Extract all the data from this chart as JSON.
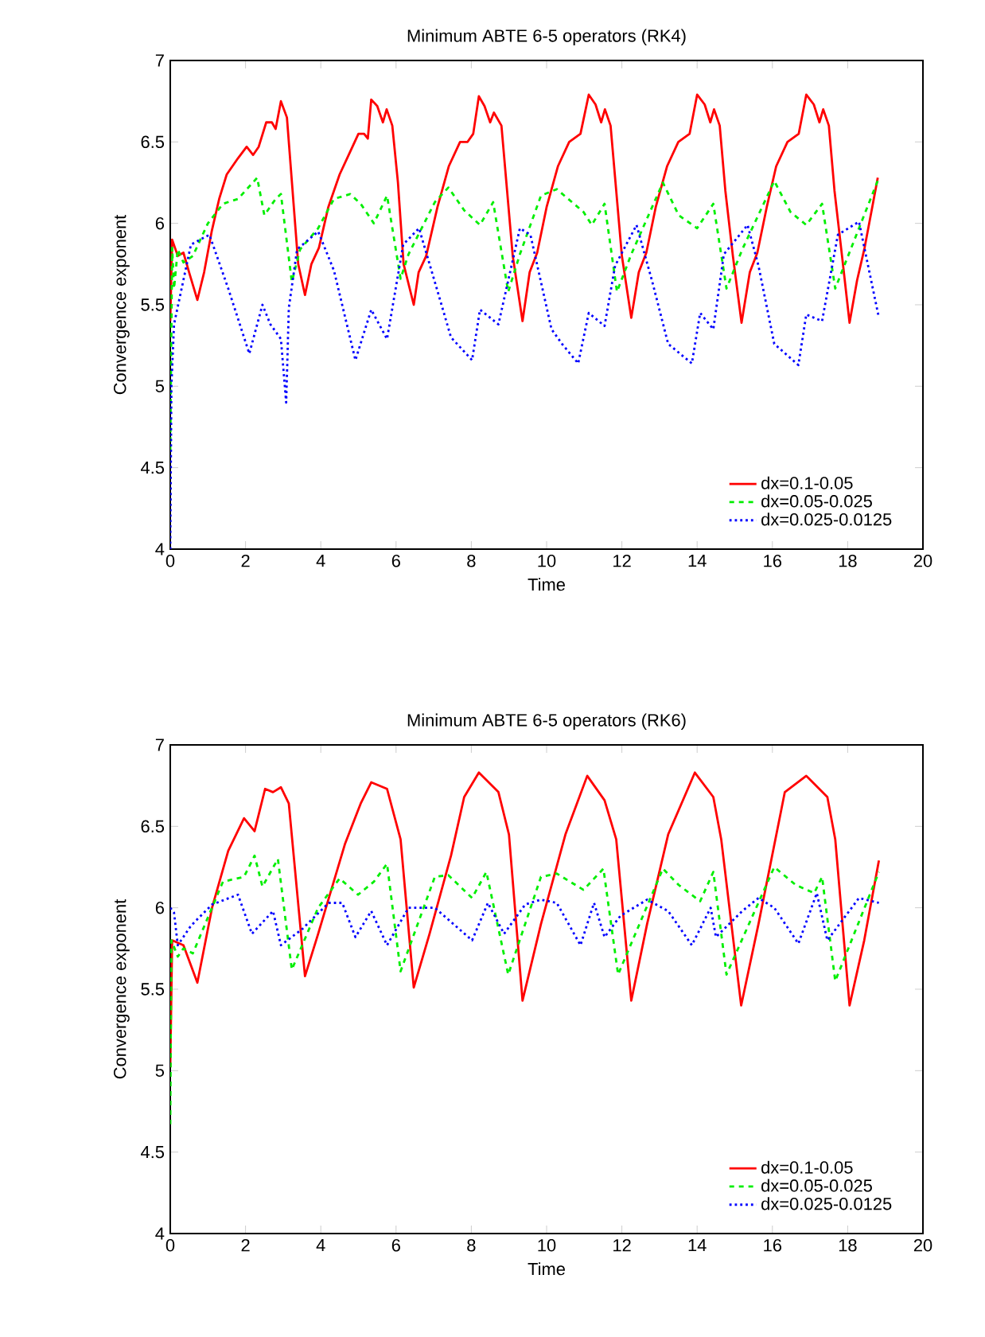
{
  "chart_data": [
    {
      "type": "line",
      "title": "Minimum ABTE 6-5 operators (RK4)",
      "xlabel": "Time",
      "ylabel": "Convergence exponent",
      "xlim": [
        0,
        20
      ],
      "xticks": [
        0,
        2,
        4,
        6,
        8,
        10,
        12,
        14,
        16,
        18,
        20
      ],
      "ylim": [
        4,
        7
      ],
      "yticks": [
        4,
        4.5,
        5,
        5.5,
        6,
        6.5,
        7
      ],
      "legend": "bottom right",
      "grid": false,
      "series": [
        {
          "name": "dx=0.1-0.05",
          "color": "#ff0000",
          "line_style": "solid",
          "x": [
            0,
            0.05,
            0.2,
            0.35,
            0.5,
            0.72,
            0.9,
            1.1,
            1.3,
            1.5,
            1.8,
            2.03,
            2.2,
            2.35,
            2.55,
            2.7,
            2.8,
            2.94,
            3.1,
            3.25,
            3.4,
            3.58,
            3.75,
            3.95,
            4.2,
            4.5,
            4.8,
            5.0,
            5.15,
            5.25,
            5.34,
            5.5,
            5.65,
            5.75,
            5.9,
            6.05,
            6.2,
            6.47,
            6.6,
            6.8,
            7.1,
            7.4,
            7.7,
            7.9,
            8.05,
            8.2,
            8.35,
            8.5,
            8.6,
            8.8,
            8.95,
            9.1,
            9.36,
            9.55,
            9.75,
            10.0,
            10.3,
            10.6,
            10.9,
            11.12,
            11.3,
            11.45,
            11.55,
            11.7,
            11.85,
            12.0,
            12.25,
            12.45,
            12.65,
            12.9,
            13.2,
            13.5,
            13.8,
            14.0,
            14.2,
            14.35,
            14.45,
            14.6,
            14.75,
            14.95,
            15.18,
            15.4,
            15.6,
            15.85,
            16.1,
            16.4,
            16.7,
            16.9,
            17.1,
            17.25,
            17.35,
            17.5,
            17.65,
            17.85,
            18.05,
            18.25,
            18.45,
            18.8
          ],
          "values": [
            5.4,
            5.9,
            5.8,
            5.82,
            5.7,
            5.53,
            5.7,
            5.95,
            6.15,
            6.3,
            6.4,
            6.47,
            6.42,
            6.47,
            6.62,
            6.62,
            6.58,
            6.75,
            6.65,
            6.2,
            5.75,
            5.56,
            5.75,
            5.85,
            6.1,
            6.3,
            6.45,
            6.55,
            6.55,
            6.52,
            6.76,
            6.72,
            6.62,
            6.7,
            6.6,
            6.25,
            5.75,
            5.5,
            5.7,
            5.8,
            6.1,
            6.35,
            6.5,
            6.5,
            6.55,
            6.78,
            6.72,
            6.62,
            6.68,
            6.6,
            6.2,
            5.8,
            5.4,
            5.7,
            5.82,
            6.1,
            6.35,
            6.5,
            6.55,
            6.79,
            6.73,
            6.62,
            6.7,
            6.6,
            6.2,
            5.8,
            5.42,
            5.7,
            5.82,
            6.1,
            6.35,
            6.5,
            6.55,
            6.79,
            6.73,
            6.62,
            6.7,
            6.6,
            6.2,
            5.8,
            5.39,
            5.7,
            5.82,
            6.1,
            6.35,
            6.5,
            6.55,
            6.79,
            6.73,
            6.62,
            6.7,
            6.6,
            6.2,
            5.8,
            5.39,
            5.65,
            5.85,
            6.28
          ]
        },
        {
          "name": "dx=0.05-0.025",
          "color": "#00ee00",
          "line_style": "dashed",
          "x": [
            0,
            0.03,
            0.05,
            0.1,
            0.2,
            0.35,
            0.6,
            1.0,
            1.4,
            1.8,
            2.31,
            2.5,
            2.8,
            2.94,
            3.23,
            3.45,
            3.93,
            4.35,
            4.78,
            5.06,
            5.41,
            5.76,
            6.12,
            6.33,
            7.03,
            7.39,
            7.81,
            8.23,
            8.58,
            8.98,
            9.29,
            9.85,
            10.27,
            10.98,
            11.2,
            11.54,
            11.87,
            12.25,
            13.09,
            13.51,
            14.0,
            14.43,
            14.78,
            15.2,
            16.05,
            16.48,
            16.9,
            17.32,
            17.67,
            18.83
          ],
          "values": [
            4.6,
            5.35,
            5.85,
            5.6,
            5.84,
            5.76,
            5.8,
            6.0,
            6.12,
            6.15,
            6.28,
            6.05,
            6.15,
            6.18,
            5.64,
            5.84,
            5.97,
            6.15,
            6.18,
            6.12,
            6.0,
            6.17,
            5.66,
            5.81,
            6.13,
            6.22,
            6.08,
            5.99,
            6.13,
            5.58,
            5.81,
            6.17,
            6.21,
            6.07,
            5.99,
            6.12,
            5.58,
            5.81,
            6.25,
            6.05,
            5.97,
            6.12,
            5.6,
            5.84,
            6.26,
            6.07,
            5.99,
            6.12,
            5.6,
            6.28
          ]
        },
        {
          "name": "dx=0.025-0.0125",
          "color": "#0000ff",
          "line_style": "dotted",
          "x": [
            0,
            0.03,
            0.1,
            0.55,
            1.04,
            1.54,
            2.1,
            2.45,
            2.66,
            2.94,
            3.08,
            3.15,
            3.37,
            3.93,
            4.35,
            4.92,
            5.34,
            5.76,
            6.19,
            6.61,
            7.03,
            7.46,
            8.02,
            8.23,
            8.72,
            9.29,
            9.57,
            10.13,
            10.41,
            10.84,
            11.12,
            11.54,
            11.82,
            12.39,
            12.81,
            13.23,
            13.86,
            14.08,
            14.43,
            14.71,
            15.34,
            15.63,
            16.05,
            16.69,
            16.9,
            17.32,
            17.74,
            18.3,
            18.83
          ],
          "values": [
            4.0,
            5.0,
            5.38,
            5.87,
            5.93,
            5.6,
            5.2,
            5.5,
            5.38,
            5.29,
            4.9,
            5.48,
            5.84,
            5.95,
            5.71,
            5.16,
            5.47,
            5.29,
            5.87,
            5.97,
            5.64,
            5.3,
            5.16,
            5.47,
            5.38,
            5.97,
            5.93,
            5.35,
            5.26,
            5.14,
            5.45,
            5.37,
            5.74,
            5.99,
            5.64,
            5.26,
            5.14,
            5.45,
            5.35,
            5.81,
            5.99,
            5.74,
            5.26,
            5.13,
            5.44,
            5.4,
            5.93,
            6.01,
            5.42
          ]
        }
      ]
    },
    {
      "type": "line",
      "title": "Minimum ABTE 6-5 operators (RK6)",
      "xlabel": "Time",
      "ylabel": "Convergence exponent",
      "xlim": [
        0,
        20
      ],
      "xticks": [
        0,
        2,
        4,
        6,
        8,
        10,
        12,
        14,
        16,
        18,
        20
      ],
      "ylim": [
        4,
        7
      ],
      "yticks": [
        4,
        4.5,
        5,
        5.5,
        6,
        6.5,
        7
      ],
      "legend": "bottom right",
      "grid": false,
      "series": [
        {
          "name": "dx=0.1-0.05",
          "color": "#ff0000",
          "line_style": "solid",
          "x": [
            0,
            0.05,
            0.35,
            0.72,
            1.11,
            1.54,
            1.96,
            2.24,
            2.52,
            2.73,
            2.94,
            3.15,
            3.58,
            3.93,
            4.64,
            5.06,
            5.34,
            5.76,
            6.12,
            6.47,
            6.89,
            7.46,
            7.81,
            8.2,
            8.72,
            9.0,
            9.36,
            9.85,
            10.5,
            11.08,
            11.54,
            11.85,
            12.25,
            12.67,
            13.23,
            13.94,
            14.43,
            14.64,
            15.17,
            15.63,
            16.33,
            16.9,
            17.46,
            17.67,
            18.05,
            18.44,
            18.83
          ],
          "values": [
            5.02,
            5.8,
            5.77,
            5.54,
            6.0,
            6.35,
            6.55,
            6.47,
            6.73,
            6.71,
            6.74,
            6.64,
            5.58,
            5.84,
            6.39,
            6.64,
            6.77,
            6.73,
            6.42,
            5.51,
            5.84,
            6.32,
            6.68,
            6.83,
            6.71,
            6.45,
            5.43,
            5.9,
            6.45,
            6.81,
            6.66,
            6.42,
            5.43,
            5.9,
            6.45,
            6.83,
            6.68,
            6.42,
            5.4,
            5.9,
            6.71,
            6.81,
            6.68,
            6.42,
            5.4,
            5.8,
            6.29
          ]
        },
        {
          "name": "dx=0.05-0.025",
          "color": "#00ee00",
          "line_style": "dashed",
          "x": [
            0,
            0.03,
            0.2,
            0.35,
            0.6,
            1.4,
            1.96,
            2.24,
            2.45,
            2.86,
            3.23,
            3.93,
            4.5,
            4.99,
            5.41,
            5.76,
            6.12,
            7.03,
            7.39,
            8.02,
            8.4,
            8.98,
            9.85,
            10.27,
            10.98,
            11.51,
            11.9,
            13.09,
            13.51,
            14.08,
            14.43,
            14.78,
            16.05,
            16.62,
            17.11,
            17.32,
            17.67,
            18.83
          ],
          "values": [
            4.67,
            5.8,
            5.7,
            5.75,
            5.72,
            6.16,
            6.19,
            6.32,
            6.13,
            6.3,
            5.62,
            6.0,
            6.18,
            6.08,
            6.16,
            6.27,
            5.61,
            6.19,
            6.2,
            6.06,
            6.22,
            5.59,
            6.19,
            6.21,
            6.11,
            6.24,
            5.59,
            6.24,
            6.14,
            6.04,
            6.22,
            5.59,
            6.25,
            6.14,
            6.09,
            6.19,
            5.55,
            6.22
          ]
        },
        {
          "name": "dx=0.025-0.0125",
          "color": "#0000ff",
          "line_style": "dotted",
          "x": [
            0,
            0.1,
            0.2,
            0.55,
            1.11,
            1.8,
            2.17,
            2.73,
            2.94,
            3.51,
            4.21,
            4.57,
            4.92,
            5.34,
            5.76,
            6.33,
            7.03,
            8.02,
            8.44,
            8.87,
            9.43,
            9.85,
            10.27,
            10.9,
            11.26,
            11.54,
            11.96,
            12.67,
            13.23,
            13.86,
            14.36,
            14.5,
            15.2,
            15.63,
            16.05,
            16.69,
            17.18,
            17.46,
            18.3,
            18.83
          ],
          "values": [
            6.0,
            5.97,
            5.77,
            5.89,
            6.02,
            6.08,
            5.84,
            5.98,
            5.77,
            5.87,
            6.03,
            6.03,
            5.82,
            5.98,
            5.77,
            6.0,
            6.0,
            5.8,
            6.03,
            5.84,
            6.02,
            6.05,
            6.03,
            5.77,
            6.03,
            5.82,
            5.95,
            6.05,
            5.98,
            5.77,
            6.0,
            5.82,
            5.98,
            6.06,
            6.0,
            5.78,
            6.09,
            5.8,
            6.06,
            6.03
          ]
        }
      ]
    }
  ]
}
